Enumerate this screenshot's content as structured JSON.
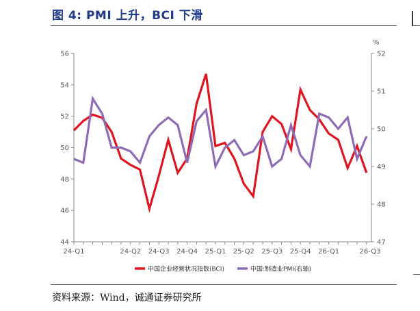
{
  "header": {
    "title": "图 4:   PMI 上升，BCI 下滑"
  },
  "footer": {
    "source": "资料来源：Wind，诚通证券研究所"
  },
  "colors": {
    "bci": "#e0141e",
    "pmi": "#8e6bb5",
    "axis": "#888888"
  },
  "chart_data": {
    "type": "line",
    "title": "",
    "x_tick_labels": [
      "24-Q1",
      "24-Q2",
      "24-Q3",
      "24-Q4",
      "25-Q1",
      "25-Q2",
      "25-Q3",
      "25-Q4",
      "26-Q1",
      "26-Q3"
    ],
    "x_tick_index": [
      0,
      6,
      9,
      12,
      15,
      18,
      21,
      24,
      27,
      33
    ],
    "y_left": {
      "ticks": [
        "56",
        "54",
        "52",
        "50",
        "48",
        "46",
        "44"
      ],
      "ylim": [
        44,
        56
      ]
    },
    "y_right": {
      "unit": "%",
      "ticks": [
        "52",
        "51",
        "50",
        "49",
        "48",
        "47"
      ],
      "ylim": [
        47,
        52
      ]
    },
    "series": [
      {
        "name": "中国企业经营状况指数(BCI)",
        "axis": "left",
        "values": [
          51.1,
          51.7,
          52.1,
          51.9,
          51.0,
          49.3,
          48.9,
          48.6,
          46.1,
          48.2,
          50.5,
          48.4,
          49.3,
          52.8,
          54.7,
          50.1,
          50.3,
          49.3,
          47.7,
          46.9,
          51.0,
          52.0,
          51.5,
          49.9,
          53.7,
          52.4,
          51.8,
          50.9,
          50.5,
          48.7,
          50.1,
          48.4
        ]
      },
      {
        "name": "中国:制造业PMI(右轴)",
        "axis": "right",
        "values": [
          49.2,
          49.1,
          50.8,
          50.4,
          49.5,
          49.5,
          49.4,
          49.1,
          49.8,
          50.1,
          50.3,
          50.1,
          49.1,
          50.2,
          50.5,
          49.0,
          49.5,
          49.7,
          49.3,
          49.4,
          49.8,
          49.0,
          49.2,
          50.1,
          49.3,
          49.0,
          50.4,
          50.3,
          50.0,
          50.3,
          49.2,
          49.8
        ]
      }
    ],
    "legend": {
      "position": "bottom-center",
      "bci_label": "中国企业经营状况指数(BCI)",
      "pmi_label": "中国:制造业PMI(右轴)"
    }
  }
}
